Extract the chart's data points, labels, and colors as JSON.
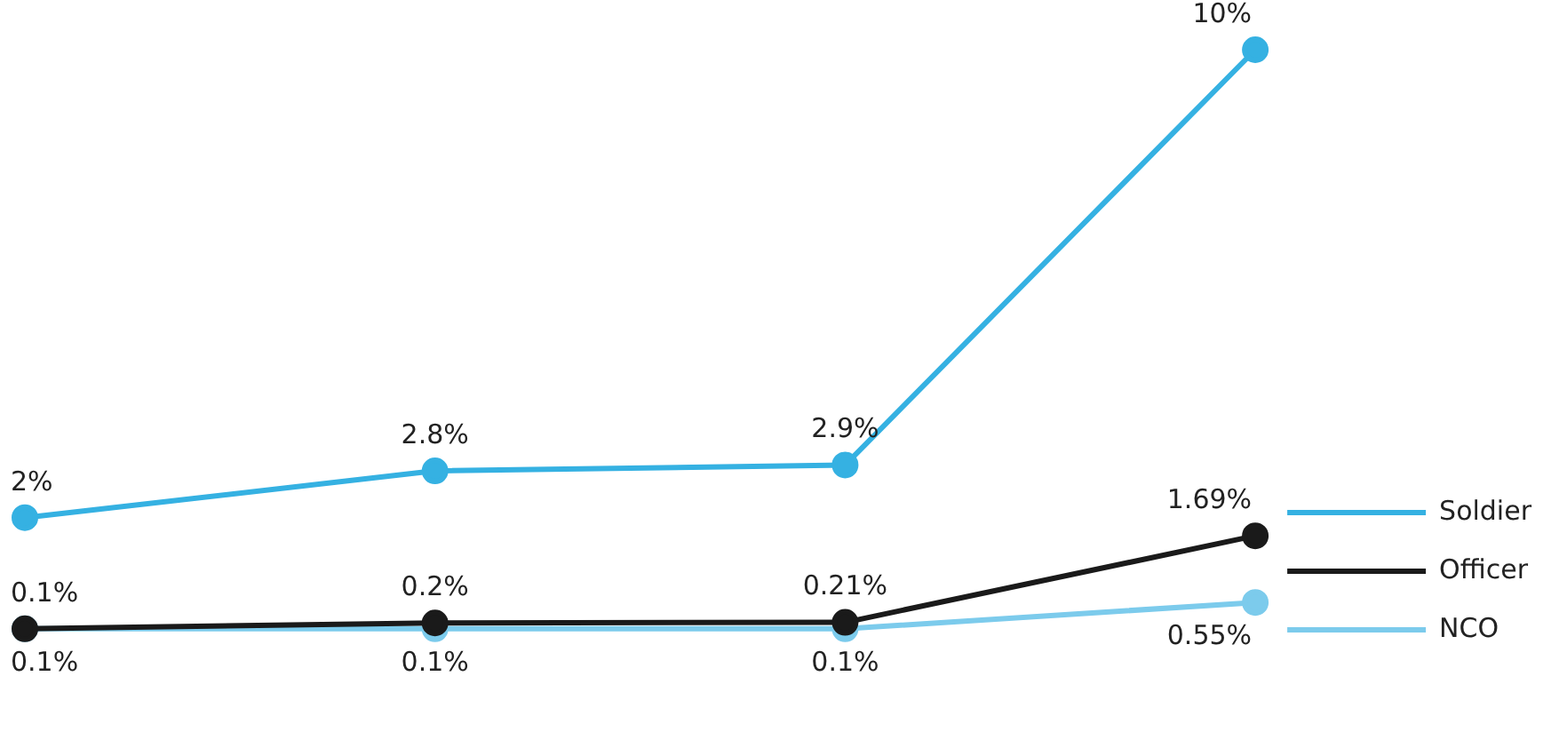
{
  "chart_data": {
    "type": "line",
    "categories": [
      null,
      null,
      null,
      null
    ],
    "series": [
      {
        "name": "Soldier",
        "color": "#35b1e2",
        "values": [
          2,
          2.8,
          2.9,
          10
        ],
        "value_labels": [
          "2%",
          "2.8%",
          "2.9%",
          "10%"
        ]
      },
      {
        "name": "Officer",
        "color": "#1a1a1a",
        "values": [
          0.1,
          0.2,
          0.21,
          1.69
        ],
        "value_labels": [
          "0.1%",
          "0.2%",
          "0.21%",
          "1.69%"
        ]
      },
      {
        "name": "NCO",
        "color": "#7ccbec",
        "values": [
          0.1,
          0.1,
          0.1,
          0.55
        ],
        "value_labels": [
          "0.1%",
          "0.1%",
          "0.1%",
          "0.55%"
        ]
      }
    ],
    "legend": "right",
    "marker": "circle"
  }
}
